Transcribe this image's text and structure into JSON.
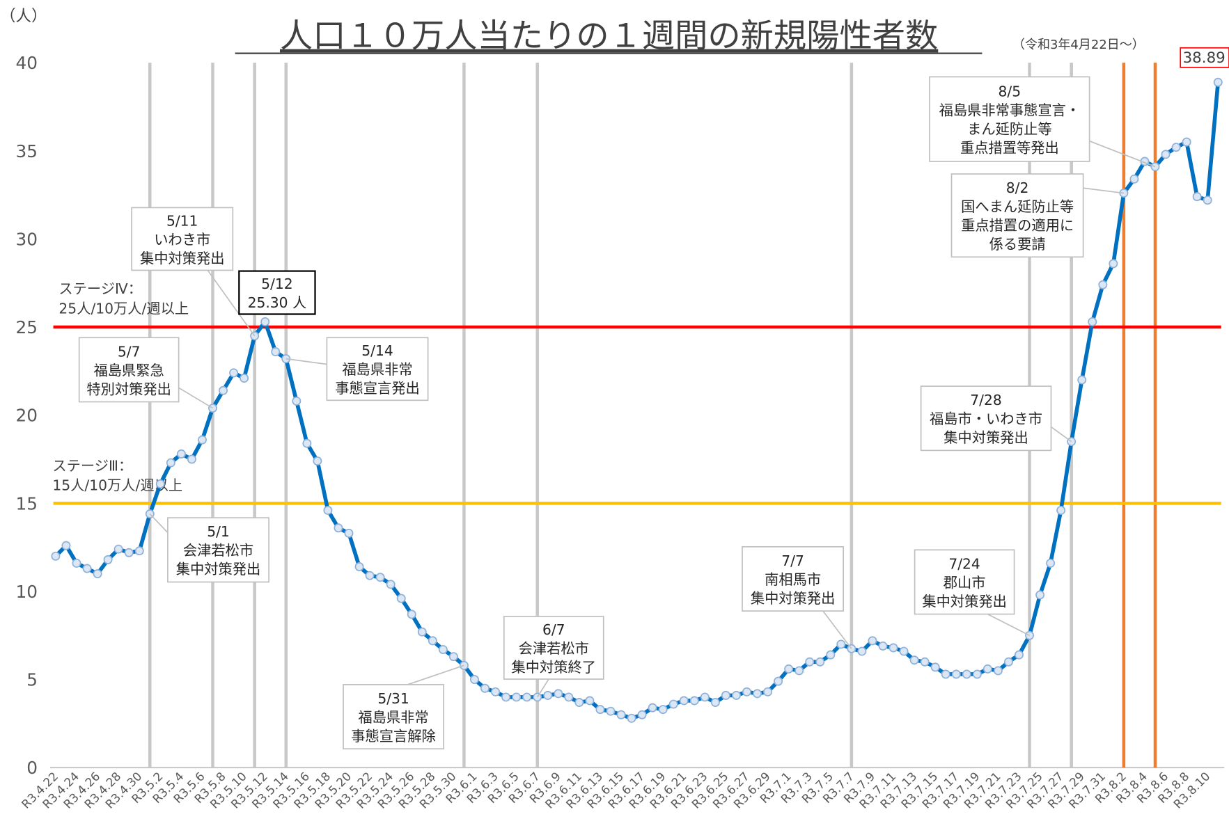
{
  "chart_data": {
    "type": "line",
    "title": "人口１０万人当たりの１週間の新規陽性者数",
    "subtitle": "（令和3年4月22日～）",
    "y_label": "（人）",
    "categories": [
      "R3.4.22",
      null,
      "R3.4.24",
      null,
      "R3.4.26",
      null,
      "R3.4.28",
      null,
      "R3.4.30",
      null,
      "R3.5.2",
      null,
      "R3.5.4",
      null,
      "R3.5.6",
      null,
      "R3.5.8",
      null,
      "R3.5.10",
      null,
      "R3.5.12",
      null,
      "R3.5.14",
      null,
      "R3.5.16",
      null,
      "R3.5.18",
      null,
      "R3.5.20",
      null,
      "R3.5.22",
      null,
      "R3.5.24",
      null,
      "R3.5.26",
      null,
      "R3.5.28",
      null,
      "R3.5.30",
      null,
      "R3.6.1",
      null,
      "R3.6.3",
      null,
      "R3.6.5",
      null,
      "R3.6.7",
      null,
      "R3.6.9",
      null,
      "R3.6.11",
      null,
      "R3.6.13",
      null,
      "R3.6.15",
      null,
      "R3.6.17",
      null,
      "R3.6.19",
      null,
      "R3.6.21",
      null,
      "R3.6.23",
      null,
      "R3.6.25",
      null,
      "R3.6.27",
      null,
      "R3.6.29",
      null,
      "R3.7.1",
      null,
      "R3.7.3",
      null,
      "R3.7.5",
      null,
      "R3.7.7",
      null,
      "R3.7.9",
      null,
      "R3.7.11",
      null,
      "R3.7.13",
      null,
      "R3.7.15",
      null,
      "R3.7.17",
      null,
      "R3.7.19",
      null,
      "R3.7.21",
      null,
      "R3.7.23",
      null,
      "R3.7.25",
      null,
      "R3.7.27",
      null,
      "R3.7.29",
      null,
      "R3.7.31",
      null,
      "R3.8.2",
      null,
      "R3.8.4",
      null,
      "R3.8.6",
      null,
      "R3.8.8",
      null,
      "R3.8.10",
      null
    ],
    "series": [
      {
        "name": "新規陽性者数",
        "color": "#0070c0",
        "values": [
          12.0,
          12.6,
          11.6,
          11.3,
          11.0,
          11.8,
          12.4,
          12.2,
          12.3,
          14.4,
          16.1,
          17.3,
          17.8,
          17.5,
          18.6,
          20.4,
          21.4,
          22.4,
          22.1,
          24.5,
          25.3,
          23.6,
          23.2,
          20.8,
          18.4,
          17.4,
          14.6,
          13.6,
          13.3,
          11.4,
          10.9,
          10.8,
          10.4,
          9.6,
          8.7,
          7.7,
          7.2,
          6.7,
          6.3,
          5.8,
          5.0,
          4.5,
          4.3,
          4.0,
          4.0,
          4.0,
          4.0,
          4.1,
          4.2,
          4.0,
          3.7,
          3.8,
          3.3,
          3.2,
          3.0,
          2.8,
          3.0,
          3.4,
          3.3,
          3.6,
          3.8,
          3.8,
          4.0,
          3.7,
          4.1,
          4.1,
          4.3,
          4.2,
          4.3,
          4.9,
          5.6,
          5.5,
          6.0,
          6.0,
          6.4,
          7.0,
          6.75,
          6.6,
          7.2,
          6.9,
          6.8,
          6.6,
          6.1,
          6.0,
          5.7,
          5.3,
          5.3,
          5.3,
          5.3,
          5.6,
          5.5,
          6.0,
          6.4,
          7.5,
          9.8,
          11.6,
          14.6,
          18.5,
          22.0,
          25.3,
          27.4,
          28.6,
          32.6,
          33.4,
          34.4,
          34.1,
          34.8,
          35.2,
          35.5,
          32.4,
          32.2,
          38.89
        ],
        "value_labels": [
          null,
          null,
          null,
          null,
          null,
          null,
          null,
          null,
          null,
          null,
          null,
          null,
          null,
          null,
          null,
          null,
          null,
          null,
          null,
          null,
          "25.30 人",
          null,
          null,
          null,
          null,
          null,
          null,
          null,
          null,
          null,
          null,
          null,
          null,
          null,
          null,
          null,
          null,
          null,
          null,
          null,
          null,
          null,
          null,
          null,
          null,
          null,
          null,
          null,
          null,
          null,
          null,
          null,
          null,
          null,
          null,
          null,
          null,
          null,
          null,
          null,
          null,
          null,
          null,
          null,
          null,
          null,
          null,
          null,
          null,
          null,
          null,
          null,
          null,
          null,
          null,
          null,
          null,
          null,
          null,
          null,
          null,
          null,
          null,
          null,
          null,
          null,
          null,
          null,
          null,
          null,
          null,
          null,
          null,
          null,
          null,
          null,
          null,
          null,
          null,
          null,
          null,
          null,
          null,
          null,
          null,
          null,
          null,
          null,
          null,
          null,
          null,
          "38.89"
        ]
      }
    ],
    "ylim": [
      0,
      40
    ],
    "yticks": [
      0,
      5,
      10,
      15,
      20,
      25,
      30,
      35,
      40
    ],
    "grid": false,
    "reference_lines": [
      {
        "value": 25,
        "color": "#ff0000",
        "text": [
          "ステージⅣ：",
          "25人/10万人/週以上"
        ]
      },
      {
        "value": 15,
        "color": "#ffc000",
        "text": [
          "ステージⅢ：",
          "15人/10万人/週以上"
        ]
      }
    ],
    "annotations": [
      {
        "point": 19,
        "text": [
          "5/11",
          "いわき市",
          "集中対策発出"
        ],
        "line_color": "#c8c8c8"
      },
      {
        "point": 20,
        "text": [
          "5/12"
        ]
      },
      {
        "point": 15,
        "text": [
          "5/7",
          "福島県緊急",
          "特別対策発出"
        ],
        "line_color": "#c8c8c8"
      },
      {
        "point": 22,
        "text": [
          "5/14",
          "福島県非常",
          "事態宣言発出"
        ],
        "line_color": "#c8c8c8"
      },
      {
        "point": 9,
        "text": [
          "5/1",
          "会津若松市",
          "集中対策発出"
        ],
        "line_color": "#c8c8c8"
      },
      {
        "point": 39,
        "text": [
          "5/31",
          "福島県非常",
          "事態宣言解除"
        ],
        "line_color": "#c8c8c8"
      },
      {
        "point": 46,
        "text": [
          "6/7",
          "会津若松市",
          "集中対策終了"
        ],
        "line_color": "#c8c8c8"
      },
      {
        "point": 76,
        "text": [
          "7/7",
          "南相馬市",
          "集中対策発出"
        ],
        "line_color": "#c8c8c8"
      },
      {
        "point": 93,
        "text": [
          "7/24",
          "郡山市",
          "集中対策発出"
        ],
        "line_color": "#c8c8c8"
      },
      {
        "point": 97,
        "text": [
          "7/28",
          "福島市・いわき市",
          "集中対策発出"
        ],
        "line_color": "#c8c8c8"
      },
      {
        "point": 102,
        "text": [
          "8/2",
          "国へまん延防止等",
          "重点措置の適用に",
          "係る要請"
        ],
        "line_color": "#ed7d31"
      },
      {
        "point": 105,
        "text": [
          "8/5",
          "福島県非常事態宣言・",
          "まん延防止等",
          "重点措置等発出"
        ],
        "line_color": "#ed7d31"
      }
    ]
  }
}
